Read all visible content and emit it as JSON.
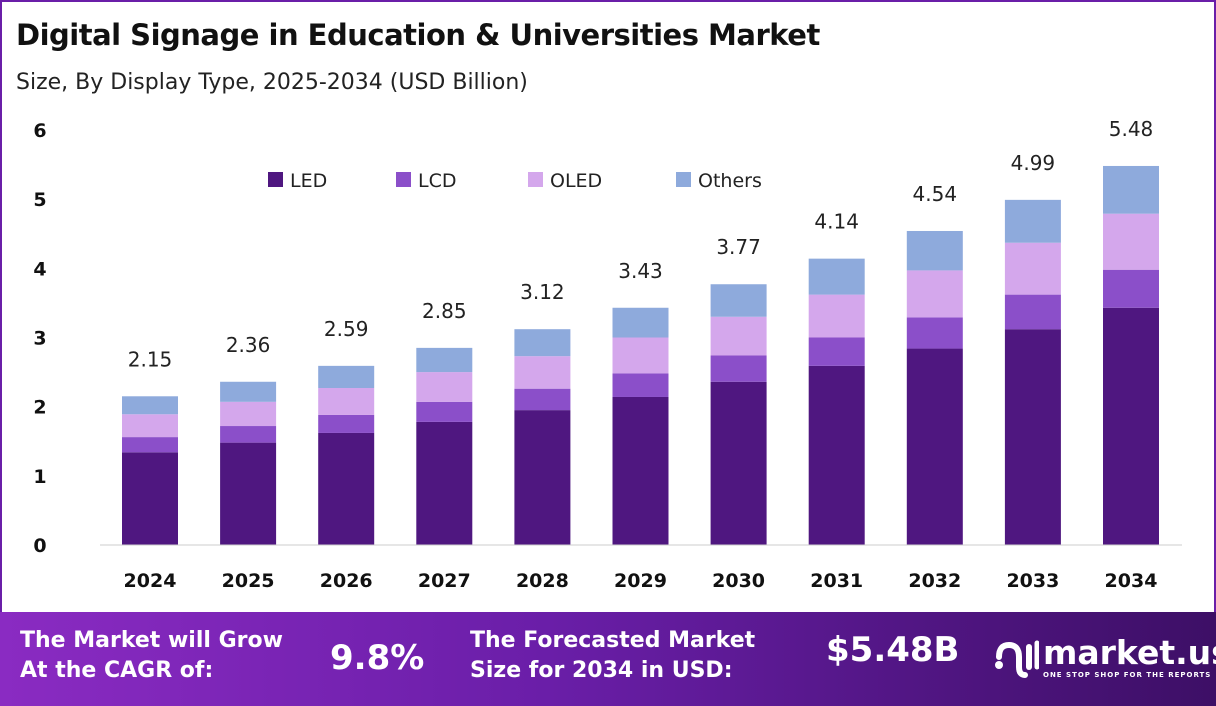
{
  "chart_data": {
    "type": "bar",
    "stacked": true,
    "title": "Digital Signage in Education & Universities Market",
    "subtitle": "Size, By Display Type, 2025-2034 (USD Billion)",
    "categories": [
      "2024",
      "2025",
      "2026",
      "2027",
      "2028",
      "2029",
      "2030",
      "2031",
      "2032",
      "2033",
      "2034"
    ],
    "totals": [
      "2.15",
      "2.36",
      "2.59",
      "2.85",
      "3.12",
      "3.43",
      "3.77",
      "4.14",
      "4.54",
      "4.99",
      "5.48"
    ],
    "series": [
      {
        "name": "LED",
        "color": "#4f1780",
        "values": [
          1.34,
          1.48,
          1.62,
          1.78,
          1.95,
          2.14,
          2.36,
          2.59,
          2.84,
          3.12,
          3.43
        ]
      },
      {
        "name": "LCD",
        "color": "#8b4fc9",
        "values": [
          0.22,
          0.24,
          0.26,
          0.29,
          0.31,
          0.34,
          0.38,
          0.41,
          0.45,
          0.5,
          0.55
        ]
      },
      {
        "name": "OLED",
        "color": "#d4a7ec",
        "values": [
          0.33,
          0.35,
          0.39,
          0.43,
          0.47,
          0.52,
          0.56,
          0.62,
          0.68,
          0.75,
          0.81
        ]
      },
      {
        "name": "Others",
        "color": "#8eaadc",
        "values": [
          0.26,
          0.29,
          0.32,
          0.35,
          0.39,
          0.43,
          0.47,
          0.52,
          0.57,
          0.62,
          0.69
        ]
      }
    ],
    "yticks": [
      "0",
      "1",
      "2",
      "3",
      "4",
      "5",
      "6"
    ],
    "ylim": [
      0,
      6
    ],
    "grid": false,
    "legend": "top"
  },
  "banner": {
    "cagr_label_1": "The Market will Grow",
    "cagr_label_2": "At the CAGR of:",
    "cagr_value": "9.8%",
    "forecast_label_1": "The Forecasted Market",
    "forecast_label_2": "Size for 2034 in USD:",
    "forecast_value": "$5.48B",
    "logo_name": "market.us",
    "logo_tagline": "ONE STOP SHOP FOR THE REPORTS"
  }
}
